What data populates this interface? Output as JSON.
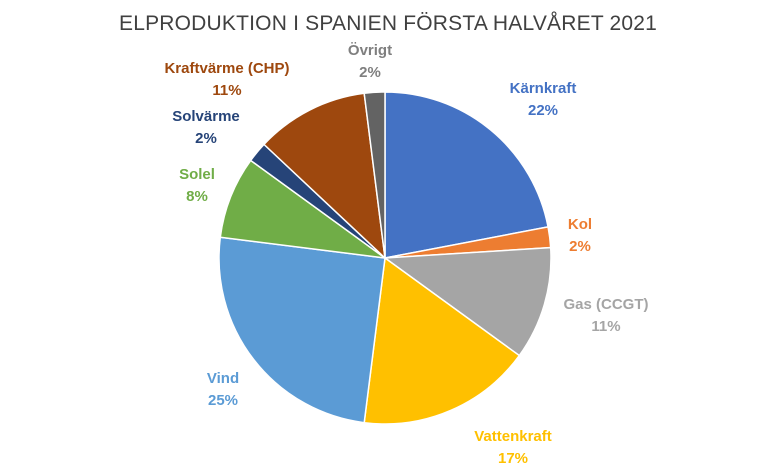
{
  "chart_data": {
    "type": "pie",
    "title": "ELPRODUKTION I SPANIEN FÖRSTA HALVÅRET 2021",
    "start_angle_deg": 0,
    "direction": "clockwise",
    "slices": [
      {
        "label": "Kärnkraft",
        "value": 22,
        "value_label": "22%",
        "color": "#4472C4"
      },
      {
        "label": "Kol",
        "value": 2,
        "value_label": "2%",
        "color": "#ED7D31"
      },
      {
        "label": "Gas (CCGT)",
        "value": 11,
        "value_label": "11%",
        "color": "#A5A5A5"
      },
      {
        "label": "Vattenkraft",
        "value": 17,
        "value_label": "17%",
        "color": "#FFC000"
      },
      {
        "label": "Vind",
        "value": 25,
        "value_label": "25%",
        "color": "#5B9BD5"
      },
      {
        "label": "Solel",
        "value": 8,
        "value_label": "8%",
        "color": "#70AD47"
      },
      {
        "label": "Solvärme",
        "value": 2,
        "value_label": "2%",
        "color": "#264478"
      },
      {
        "label": "Kraftvärme (CHP)",
        "value": 11,
        "value_label": "11%",
        "color": "#9E480E"
      },
      {
        "label": "Övrigt",
        "value": 2,
        "value_label": "2%",
        "color": "#636363"
      }
    ],
    "label_colors": {
      "Kärnkraft": "#4472C4",
      "Kol": "#ED7D31",
      "Gas (CCGT)": "#A5A5A5",
      "Vattenkraft": "#FFC000",
      "Vind": "#5B9BD5",
      "Solel": "#70AD47",
      "Solvärme": "#264478",
      "Kraftvärme (CHP)": "#9E480E",
      "Övrigt": "#7F7F7F"
    },
    "legend": "none"
  }
}
